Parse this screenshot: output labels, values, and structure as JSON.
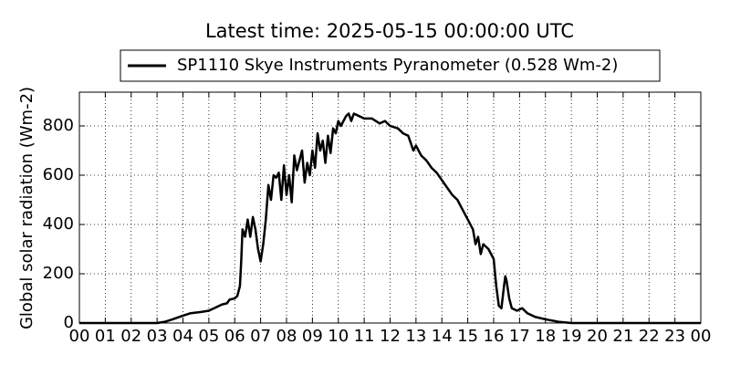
{
  "chart_data": {
    "type": "line",
    "title": "Latest time: 2025-05-15 00:00:00 UTC",
    "y_label": "Global solar radiation (Wm-2)",
    "x": [
      0,
      3.0,
      3.3,
      3.6,
      4.0,
      4.3,
      4.7,
      5.0,
      5.3,
      5.5,
      5.7,
      5.8,
      6.0,
      6.1,
      6.2,
      6.25,
      6.3,
      6.4,
      6.5,
      6.6,
      6.7,
      6.8,
      6.9,
      7.0,
      7.1,
      7.2,
      7.3,
      7.4,
      7.5,
      7.6,
      7.7,
      7.8,
      7.9,
      8.0,
      8.1,
      8.2,
      8.3,
      8.4,
      8.5,
      8.6,
      8.7,
      8.8,
      8.9,
      9.0,
      9.1,
      9.2,
      9.3,
      9.4,
      9.5,
      9.6,
      9.7,
      9.8,
      9.9,
      10.0,
      10.1,
      10.3,
      10.4,
      10.5,
      10.6,
      10.8,
      11.0,
      11.3,
      11.6,
      11.8,
      12.0,
      12.3,
      12.5,
      12.7,
      12.9,
      13.0,
      13.2,
      13.4,
      13.6,
      13.8,
      14.0,
      14.2,
      14.4,
      14.6,
      14.8,
      15.0,
      15.2,
      15.3,
      15.4,
      15.5,
      15.6,
      15.8,
      16.0,
      16.1,
      16.2,
      16.3,
      16.4,
      16.45,
      16.5,
      16.6,
      16.7,
      16.9,
      17.1,
      17.3,
      17.6,
      18.0,
      18.5,
      19.0,
      24
    ],
    "series": [
      {
        "name": "SP1110 Skye Instruments Pyranometer (0.528 Wm-2)",
        "color": "#000000",
        "values": [
          0,
          0,
          5,
          15,
          30,
          40,
          45,
          50,
          65,
          75,
          80,
          95,
          100,
          110,
          150,
          250,
          380,
          350,
          420,
          350,
          430,
          380,
          300,
          250,
          320,
          420,
          560,
          500,
          600,
          590,
          610,
          500,
          640,
          520,
          600,
          490,
          680,
          620,
          660,
          700,
          570,
          650,
          600,
          700,
          630,
          770,
          700,
          740,
          650,
          760,
          690,
          790,
          770,
          820,
          800,
          840,
          850,
          820,
          850,
          840,
          830,
          830,
          810,
          820,
          800,
          790,
          770,
          760,
          700,
          720,
          680,
          660,
          630,
          610,
          580,
          550,
          520,
          500,
          460,
          420,
          380,
          320,
          350,
          280,
          320,
          300,
          260,
          150,
          70,
          60,
          150,
          190,
          170,
          100,
          60,
          50,
          60,
          40,
          25,
          15,
          5,
          0,
          0
        ]
      }
    ],
    "xlim": [
      0,
      24
    ],
    "ylim": [
      0,
      937
    ],
    "xticks": [
      {
        "value": 0,
        "label": "00"
      },
      {
        "value": 1,
        "label": "01"
      },
      {
        "value": 2,
        "label": "02"
      },
      {
        "value": 3,
        "label": "03"
      },
      {
        "value": 4,
        "label": "04"
      },
      {
        "value": 5,
        "label": "05"
      },
      {
        "value": 6,
        "label": "06"
      },
      {
        "value": 7,
        "label": "07"
      },
      {
        "value": 8,
        "label": "08"
      },
      {
        "value": 9,
        "label": "09"
      },
      10,
      11,
      12,
      13,
      14,
      15,
      16,
      17,
      18,
      19,
      20,
      21,
      22,
      23,
      {
        "value": 24,
        "label": "00"
      }
    ],
    "yticks": [
      0,
      200,
      400,
      600,
      800
    ],
    "grid": true
  }
}
